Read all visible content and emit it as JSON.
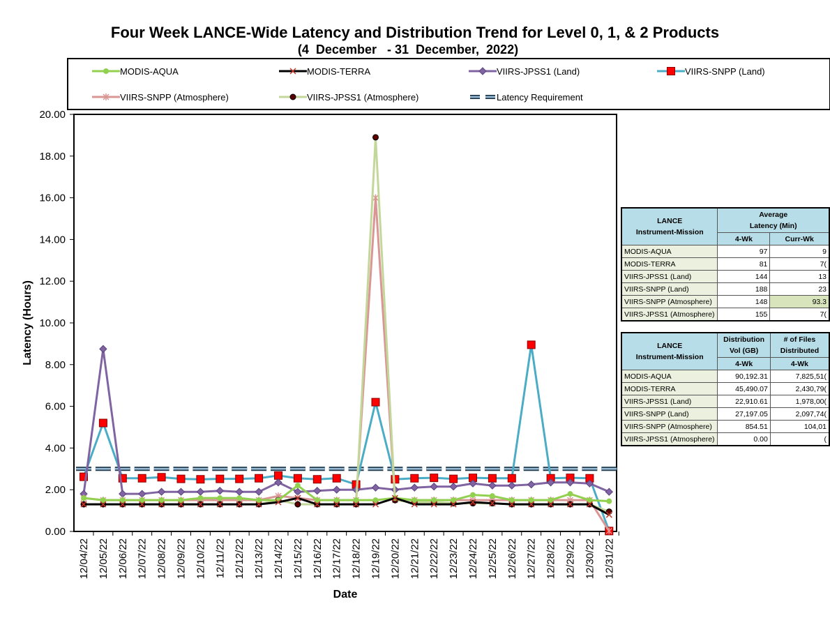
{
  "chart_data": {
    "type": "line",
    "title": "Four Week LANCE-Wide Latency and Distribution Trend for Level 0, 1, & 2 Products",
    "subtitle": "(4  December   - 31  December,  2022)",
    "xlabel": "Date",
    "ylabel": "Latency (Hours)",
    "ylim": [
      0,
      20
    ],
    "yticks": [
      "0.00",
      "2.00",
      "4.00",
      "6.00",
      "8.00",
      "10.00",
      "12.00",
      "14.00",
      "16.00",
      "18.00",
      "20.00"
    ],
    "grid": false,
    "legend_position": "top",
    "categories": [
      "12/04/22",
      "12/05/22",
      "12/06/22",
      "12/07/22",
      "12/08/22",
      "12/09/22",
      "12/10/22",
      "12/11/22",
      "12/12/22",
      "12/13/22",
      "12/14/22",
      "12/15/22",
      "12/16/22",
      "12/17/22",
      "12/18/22",
      "12/19/22",
      "12/20/22",
      "12/21/22",
      "12/22/22",
      "12/23/22",
      "12/24/22",
      "12/25/22",
      "12/26/22",
      "12/27/22",
      "12/28/22",
      "12/29/22",
      "12/30/22",
      "12/31/22"
    ],
    "series": [
      {
        "name": "MODIS-AQUA",
        "color": "#92d050",
        "marker": "circle",
        "values": [
          1.6,
          1.5,
          1.5,
          1.5,
          1.5,
          1.5,
          1.6,
          1.6,
          1.6,
          1.5,
          1.5,
          2.2,
          1.5,
          1.5,
          1.5,
          1.5,
          1.6,
          1.5,
          1.5,
          1.5,
          1.75,
          1.7,
          1.5,
          1.5,
          1.5,
          1.8,
          1.5,
          1.45
        ]
      },
      {
        "name": "MODIS-TERRA",
        "color": "#000000",
        "marker": "x",
        "values": [
          1.3,
          1.3,
          1.3,
          1.3,
          1.3,
          1.3,
          1.3,
          1.3,
          1.3,
          1.3,
          1.4,
          1.6,
          1.3,
          1.3,
          1.3,
          1.3,
          1.6,
          1.3,
          1.3,
          1.3,
          1.4,
          1.35,
          1.3,
          1.3,
          1.3,
          1.3,
          1.3,
          0.8
        ]
      },
      {
        "name": "VIIRS-JPSS1 (Land)",
        "color": "#8064a2",
        "marker": "diamond",
        "values": [
          1.8,
          8.75,
          1.8,
          1.8,
          1.9,
          1.9,
          1.9,
          1.95,
          1.9,
          1.9,
          2.35,
          1.9,
          1.95,
          2.0,
          2.0,
          2.1,
          2.0,
          2.1,
          2.15,
          2.15,
          2.3,
          2.2,
          2.2,
          2.25,
          2.35,
          2.35,
          2.3,
          1.9
        ]
      },
      {
        "name": "VIIRS-SNPP (Land)",
        "color": "#4bacc6",
        "marker": "square",
        "values": [
          2.62,
          5.2,
          2.55,
          2.55,
          2.6,
          2.52,
          2.5,
          2.52,
          2.52,
          2.55,
          2.68,
          2.55,
          2.5,
          2.55,
          2.25,
          6.2,
          2.5,
          2.55,
          2.57,
          2.52,
          2.57,
          2.55,
          2.55,
          8.95,
          2.55,
          2.57,
          2.55,
          0.02
        ]
      },
      {
        "name": "VIIRS-SNPP (Atmosphere)",
        "color": "#d99694",
        "marker": "asterisk",
        "values": [
          1.6,
          1.5,
          1.5,
          1.5,
          1.5,
          1.5,
          1.5,
          1.5,
          1.5,
          1.5,
          1.7,
          1.6,
          1.5,
          1.5,
          1.5,
          16.0,
          1.5,
          1.5,
          1.5,
          1.5,
          1.5,
          1.5,
          1.5,
          1.5,
          1.5,
          1.5,
          1.5,
          0.02
        ]
      },
      {
        "name": "VIIRS-JPSS1 (Atmosphere)",
        "color": "#c4d79b",
        "marker": "dot",
        "values": [
          1.3,
          1.3,
          1.3,
          1.3,
          1.3,
          1.3,
          1.3,
          1.3,
          1.3,
          1.3,
          1.5,
          1.3,
          1.3,
          1.3,
          1.3,
          18.9,
          1.5,
          1.4,
          1.4,
          1.35,
          1.35,
          1.35,
          1.3,
          1.3,
          1.3,
          1.3,
          1.3,
          0.95
        ]
      },
      {
        "name": "Latency Requirement",
        "color": "#4bacc6",
        "marker": "dash",
        "values": [
          3,
          3,
          3,
          3,
          3,
          3,
          3,
          3,
          3,
          3,
          3,
          3,
          3,
          3,
          3,
          3,
          3,
          3,
          3,
          3,
          3,
          3,
          3,
          3,
          3,
          3,
          3,
          3
        ]
      }
    ]
  },
  "table_latency": {
    "header_left": [
      "LANCE",
      "Instrument-Mission"
    ],
    "header_avg": [
      "Average",
      "Latency (Min)"
    ],
    "col_4wk": "4-Wk",
    "col_curr": "Curr-Wk",
    "rows": [
      {
        "name": "MODIS-AQUA",
        "wk4": "97",
        "curr": "9"
      },
      {
        "name": "MODIS-TERRA",
        "wk4": "81",
        "curr": "7("
      },
      {
        "name": "VIIRS-JPSS1 (Land)",
        "wk4": "144",
        "curr": "13"
      },
      {
        "name": "VIIRS-SNPP (Land)",
        "wk4": "188",
        "curr": "23"
      },
      {
        "name": "VIIRS-SNPP (Atmosphere)",
        "wk4": "148",
        "curr": "93.3"
      },
      {
        "name": "VIIRS-JPSS1 (Atmosphere)",
        "wk4": "155",
        "curr": "7("
      }
    ]
  },
  "table_distribution": {
    "header_left": [
      "LANCE",
      "Instrument-Mission"
    ],
    "header_vol": [
      "Distribution",
      "Vol (GB)"
    ],
    "header_files": [
      "# of Files",
      "Distributed"
    ],
    "col_4wk": "4-Wk",
    "rows": [
      {
        "name": "MODIS-AQUA",
        "vol": "90,192.31",
        "files": "7,825,51("
      },
      {
        "name": "MODIS-TERRA",
        "vol": "45,490.07",
        "files": "2,430,79("
      },
      {
        "name": "VIIRS-JPSS1 (Land)",
        "vol": "22,910.61",
        "files": "1,978,00("
      },
      {
        "name": "VIIRS-SNPP (Land)",
        "vol": "27,197.05",
        "files": "2,097,74("
      },
      {
        "name": "VIIRS-SNPP (Atmosphere)",
        "vol": "854.51",
        "files": "104,01"
      },
      {
        "name": "VIIRS-JPSS1 (Atmosphere)",
        "vol": "0.00",
        "files": "("
      }
    ]
  }
}
